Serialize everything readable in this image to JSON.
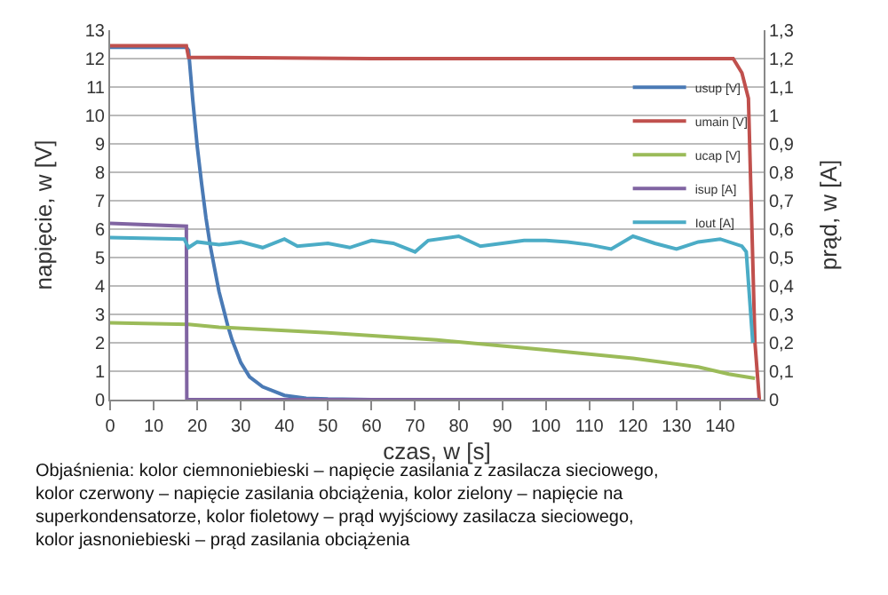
{
  "chart_data": {
    "type": "line",
    "xlabel": "czas, w [s]",
    "ylabel": "napięcie, w [V]",
    "y2label": "prąd, w [A]",
    "xlim": [
      0,
      150
    ],
    "xticks": [
      0,
      10,
      20,
      30,
      40,
      50,
      60,
      70,
      80,
      90,
      100,
      110,
      120,
      130,
      140
    ],
    "ylim": [
      0,
      13
    ],
    "yticks": [
      0,
      1,
      2,
      3,
      4,
      5,
      6,
      7,
      8,
      9,
      10,
      11,
      12,
      13
    ],
    "y2lim": [
      0,
      1.3
    ],
    "y2ticks": [
      0,
      {
        "value": 0.1,
        "label": "0,1"
      },
      {
        "value": 0.2,
        "label": "0,2"
      },
      {
        "value": 0.3,
        "label": "0,3"
      },
      {
        "value": 0.4,
        "label": "0,4"
      },
      {
        "value": 0.5,
        "label": "0,5"
      },
      {
        "value": 0.6,
        "label": "0,6"
      },
      {
        "value": 0.7,
        "label": "0,7"
      },
      {
        "value": 0.8,
        "label": "0,8"
      },
      {
        "value": 0.9,
        "label": "0,9"
      },
      1,
      {
        "value": 1.1,
        "label": "1,1"
      },
      {
        "value": 1.2,
        "label": "1,2"
      },
      {
        "value": 1.3,
        "label": "1,3"
      }
    ],
    "grid": "y",
    "legend": "right",
    "marker": "none",
    "line_style": "solid",
    "series": [
      {
        "name": "usup [V]",
        "color": "#4a7ab5",
        "x": [
          0,
          17.5,
          18,
          19,
          20,
          21,
          22,
          23,
          24,
          25,
          26,
          27,
          28,
          30,
          32,
          35,
          40,
          45,
          50,
          60
        ],
        "values": [
          12.4,
          12.4,
          12.3,
          10.5,
          8.9,
          7.6,
          6.4,
          5.4,
          4.6,
          3.8,
          3.2,
          2.6,
          2.1,
          1.3,
          0.8,
          0.45,
          0.15,
          0.05,
          0.02,
          0
        ]
      },
      {
        "name": "umain [V]",
        "color": "#c0504d",
        "x": [
          0,
          17.5,
          18,
          60,
          100,
          120,
          140,
          143,
          145,
          146.5,
          148,
          149
        ],
        "values": [
          12.45,
          12.45,
          12.05,
          12.0,
          12.0,
          12.0,
          12.0,
          12.0,
          11.5,
          10.6,
          2,
          0
        ]
      },
      {
        "name": "ucap [V]",
        "color": "#9bbb59",
        "x": [
          0,
          18,
          25,
          50,
          75,
          100,
          120,
          135,
          142,
          148
        ],
        "values": [
          2.7,
          2.65,
          2.55,
          2.35,
          2.1,
          1.75,
          1.45,
          1.15,
          0.9,
          0.75
        ]
      },
      {
        "name": "isup [A]",
        "color": "#8064a2",
        "axis": "y2",
        "x": [
          0,
          17.5,
          17.6,
          149
        ],
        "values": [
          0.62,
          0.61,
          0,
          0
        ]
      },
      {
        "name": "Iout [A]",
        "color": "#4bacc6",
        "axis": "y2",
        "x": [
          0,
          17,
          18,
          20,
          25,
          30,
          35,
          40,
          43,
          50,
          55,
          60,
          65,
          70,
          73,
          80,
          85,
          90,
          95,
          100,
          105,
          110,
          115,
          120,
          125,
          130,
          135,
          140,
          145,
          146,
          147.5
        ],
        "values": [
          0.57,
          0.565,
          0.535,
          0.555,
          0.545,
          0.555,
          0.535,
          0.565,
          0.54,
          0.55,
          0.535,
          0.56,
          0.55,
          0.52,
          0.56,
          0.575,
          0.54,
          0.55,
          0.56,
          0.56,
          0.555,
          0.545,
          0.53,
          0.575,
          0.55,
          0.53,
          0.555,
          0.565,
          0.54,
          0.52,
          0.2
        ]
      }
    ],
    "annotations": [
      "Objaśnienia: kolor ciemnoniebieski – napięcie zasilania z zasilacza sieciowego,\nkolor czerwony – napięcie zasilania obciążenia, kolor zielony – napięcie na\nsuperkondensatorze, kolor fioletowy – prąd wyjściowy zasilacza sieciowego,\nkolor jasnoniebieski – prąd zasilania obciążenia"
    ]
  }
}
